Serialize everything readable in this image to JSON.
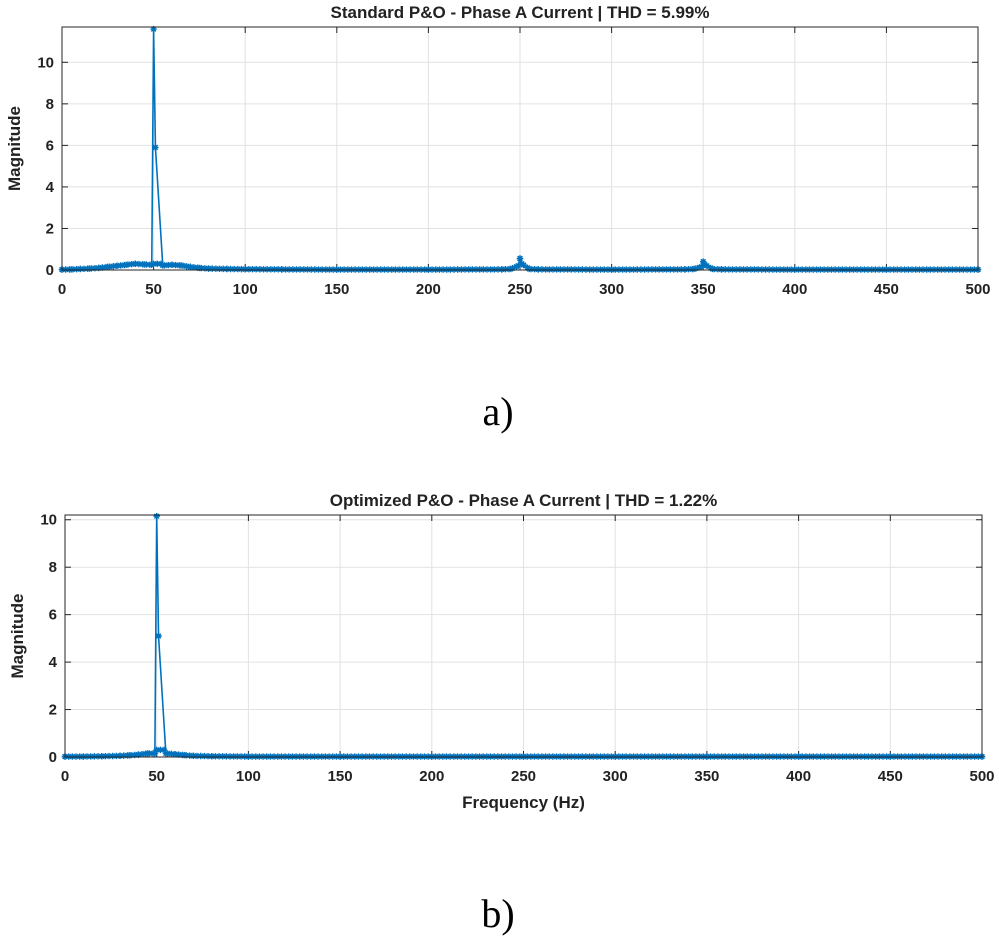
{
  "labels": {
    "a": "a)",
    "b": "b)"
  },
  "colors": {
    "series": "#0072BD",
    "grid": "#e2e2e2",
    "axis": "#262626"
  },
  "chart_data": [
    {
      "type": "line",
      "marker": "asterisk",
      "title": "Standard P&O - Phase A Current | THD = 5.99%",
      "xlabel": "",
      "ylabel": "Magnitude",
      "xlim": [
        0,
        500
      ],
      "ylim": [
        0,
        11.7
      ],
      "xticks": [
        0,
        50,
        100,
        150,
        200,
        250,
        300,
        350,
        400,
        450,
        500
      ],
      "yticks": [
        0,
        2,
        4,
        6,
        8,
        10
      ],
      "grid": true,
      "series": [
        {
          "x": [
            0,
            5,
            10,
            15,
            20,
            25,
            30,
            35,
            40,
            45,
            49,
            50,
            51,
            55,
            60,
            65,
            70,
            75,
            80,
            90,
            100,
            120,
            150,
            200,
            240,
            245,
            249,
            250,
            251,
            255,
            260,
            300,
            340,
            345,
            349,
            350,
            351,
            355,
            360,
            400,
            450,
            500
          ],
          "y": [
            0.02,
            0.03,
            0.05,
            0.07,
            0.1,
            0.15,
            0.2,
            0.25,
            0.3,
            0.27,
            0.25,
            11.6,
            5.9,
            0.22,
            0.25,
            0.22,
            0.15,
            0.1,
            0.07,
            0.05,
            0.04,
            0.03,
            0.02,
            0.02,
            0.03,
            0.05,
            0.2,
            0.55,
            0.3,
            0.05,
            0.03,
            0.02,
            0.03,
            0.05,
            0.15,
            0.4,
            0.25,
            0.05,
            0.03,
            0.02,
            0.02,
            0.02
          ]
        }
      ]
    },
    {
      "type": "line",
      "marker": "asterisk",
      "title": "Optimized P&O - Phase A Current | THD = 1.22%",
      "xlabel": "Frequency (Hz)",
      "ylabel": "Magnitude",
      "xlim": [
        0,
        500
      ],
      "ylim": [
        0,
        10.2
      ],
      "xticks": [
        0,
        50,
        100,
        150,
        200,
        250,
        300,
        350,
        400,
        450,
        500
      ],
      "yticks": [
        0,
        2,
        4,
        6,
        8,
        10
      ],
      "grid": true,
      "series": [
        {
          "x": [
            0,
            10,
            20,
            30,
            35,
            40,
            45,
            49,
            50,
            51,
            55,
            60,
            65,
            70,
            80,
            100,
            150,
            200,
            250,
            300,
            350,
            400,
            450,
            500
          ],
          "y": [
            0.02,
            0.02,
            0.03,
            0.05,
            0.07,
            0.1,
            0.15,
            0.15,
            10.15,
            5.1,
            0.15,
            0.12,
            0.08,
            0.05,
            0.03,
            0.02,
            0.02,
            0.02,
            0.02,
            0.02,
            0.02,
            0.02,
            0.02,
            0.02
          ]
        }
      ]
    }
  ]
}
